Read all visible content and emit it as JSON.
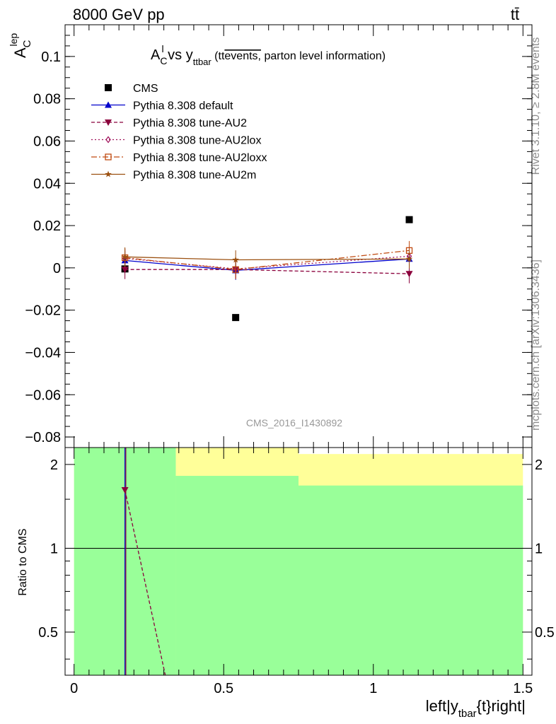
{
  "header": {
    "energy_label": "8000 GeV pp",
    "process_label": "tt̄"
  },
  "side_labels": {
    "rivet": "Rivet 3.1.10, ≥ 2.8M events",
    "source": "mcplots.cern.ch [arXiv:1306.3436]"
  },
  "watermark": "CMS_2016_I1430892",
  "chart_data": [
    {
      "type": "line",
      "title_main": "A",
      "title_sup": "l",
      "title_sub": "C",
      "title_vs": " vs y",
      "title_vs_sub": "ttbar",
      "title_paren_open": " (tt",
      "title_overline": "events,",
      "title_rest": " parton level information)",
      "ylabel_main": "A",
      "ylabel_sup": "lep",
      "ylabel_sub": "C",
      "xlim": [
        -0.03,
        1.53
      ],
      "ylim": [
        -0.085,
        0.115
      ],
      "yticks": [
        -0.08,
        -0.06,
        -0.04,
        -0.02,
        0,
        0.02,
        0.04,
        0.06,
        0.08,
        0.1
      ],
      "ytick_labels": [
        "−0.08",
        "−0.06",
        "−0.04",
        "−0.02",
        "0",
        "0.02",
        "0.04",
        "0.06",
        "0.08",
        "0.1"
      ],
      "x": [
        0.17,
        0.54,
        1.12
      ],
      "series": [
        {
          "name": "CMS",
          "style": "data",
          "color": "#000000",
          "marker": "square",
          "values": [
            -0.0005,
            -0.0235,
            0.0228
          ],
          "errors": [
            0,
            0,
            0
          ]
        },
        {
          "name": "Pythia 8.308 default",
          "style": "solid",
          "color": "#0000cc",
          "marker": "triangle-up",
          "values": [
            0.0035,
            -0.0012,
            0.0042
          ],
          "errors": [
            0.0045,
            0.0045,
            0.0045
          ]
        },
        {
          "name": "Pythia 8.308 tune-AU2",
          "style": "dashed",
          "color": "#8b003c",
          "marker": "triangle-down",
          "values": [
            -0.0008,
            -0.0008,
            -0.0028
          ],
          "errors": [
            0.0045,
            0.0045,
            0.0045
          ]
        },
        {
          "name": "Pythia 8.308 tune-AU2lox",
          "style": "dotted",
          "color": "#a0105a",
          "marker": "diamond-open",
          "values": [
            0.0045,
            -0.0005,
            0.0055
          ],
          "errors": [
            0.0045,
            0.0045,
            0.0045
          ]
        },
        {
          "name": "Pythia 8.308 tune-AU2loxx",
          "style": "dashdot",
          "color": "#c04a10",
          "marker": "square-open",
          "values": [
            0.0048,
            -0.0008,
            0.0082
          ],
          "errors": [
            0.0045,
            0.0045,
            0.0045
          ]
        },
        {
          "name": "Pythia 8.308 tune-AU2m",
          "style": "solid",
          "color": "#9b5010",
          "marker": "star",
          "values": [
            0.0052,
            0.0038,
            0.0042
          ],
          "errors": [
            0.0045,
            0.0045,
            0.0045
          ]
        }
      ]
    },
    {
      "type": "line",
      "ylabel": "Ratio to CMS",
      "xlabel_main": "left|y",
      "xlabel_sub": "tbar",
      "xlabel_rest": "{t}right|",
      "ylim": [
        0.35,
        2.3
      ],
      "yticks": [
        0.5,
        1,
        2
      ],
      "ytick_labels": [
        "0.5",
        "1",
        "2"
      ],
      "xticks": [
        0,
        0.5,
        1,
        1.5
      ],
      "xtick_labels": [
        "0",
        "0.5",
        "1",
        "1.5"
      ],
      "bands": [
        {
          "x0": 0.0,
          "x1": 0.34,
          "yellow": [
            0.35,
            2.3
          ],
          "green": [
            0.35,
            2.3
          ]
        },
        {
          "x0": 0.34,
          "x1": 0.75,
          "yellow": [
            0.35,
            2.3
          ],
          "green": [
            0.35,
            1.82
          ]
        },
        {
          "x0": 0.75,
          "x1": 1.5,
          "yellow": [
            0.35,
            2.18
          ],
          "green": [
            0.35,
            1.68
          ]
        }
      ],
      "reference": 1,
      "ratio_lines": [
        {
          "name": "Pythia 8.308 tune-AU2",
          "color": "#8b003c",
          "style": "dashed",
          "points": [
            [
              0.17,
              1.62
            ],
            [
              0.305,
              0.35
            ]
          ]
        }
      ],
      "ratio_verticals": [
        {
          "name": "Pythia 8.308 default",
          "color": "#0000cc",
          "x": 0.17
        },
        {
          "name": "Pythia 8.308 tune-AU2",
          "color": "#8b003c",
          "x": 0.173
        }
      ],
      "ratio_markers": [
        {
          "name": "Pythia 8.308 tune-AU2",
          "color": "#8b003c",
          "marker": "triangle-down",
          "x": 0.17,
          "y": 1.62
        }
      ]
    }
  ]
}
